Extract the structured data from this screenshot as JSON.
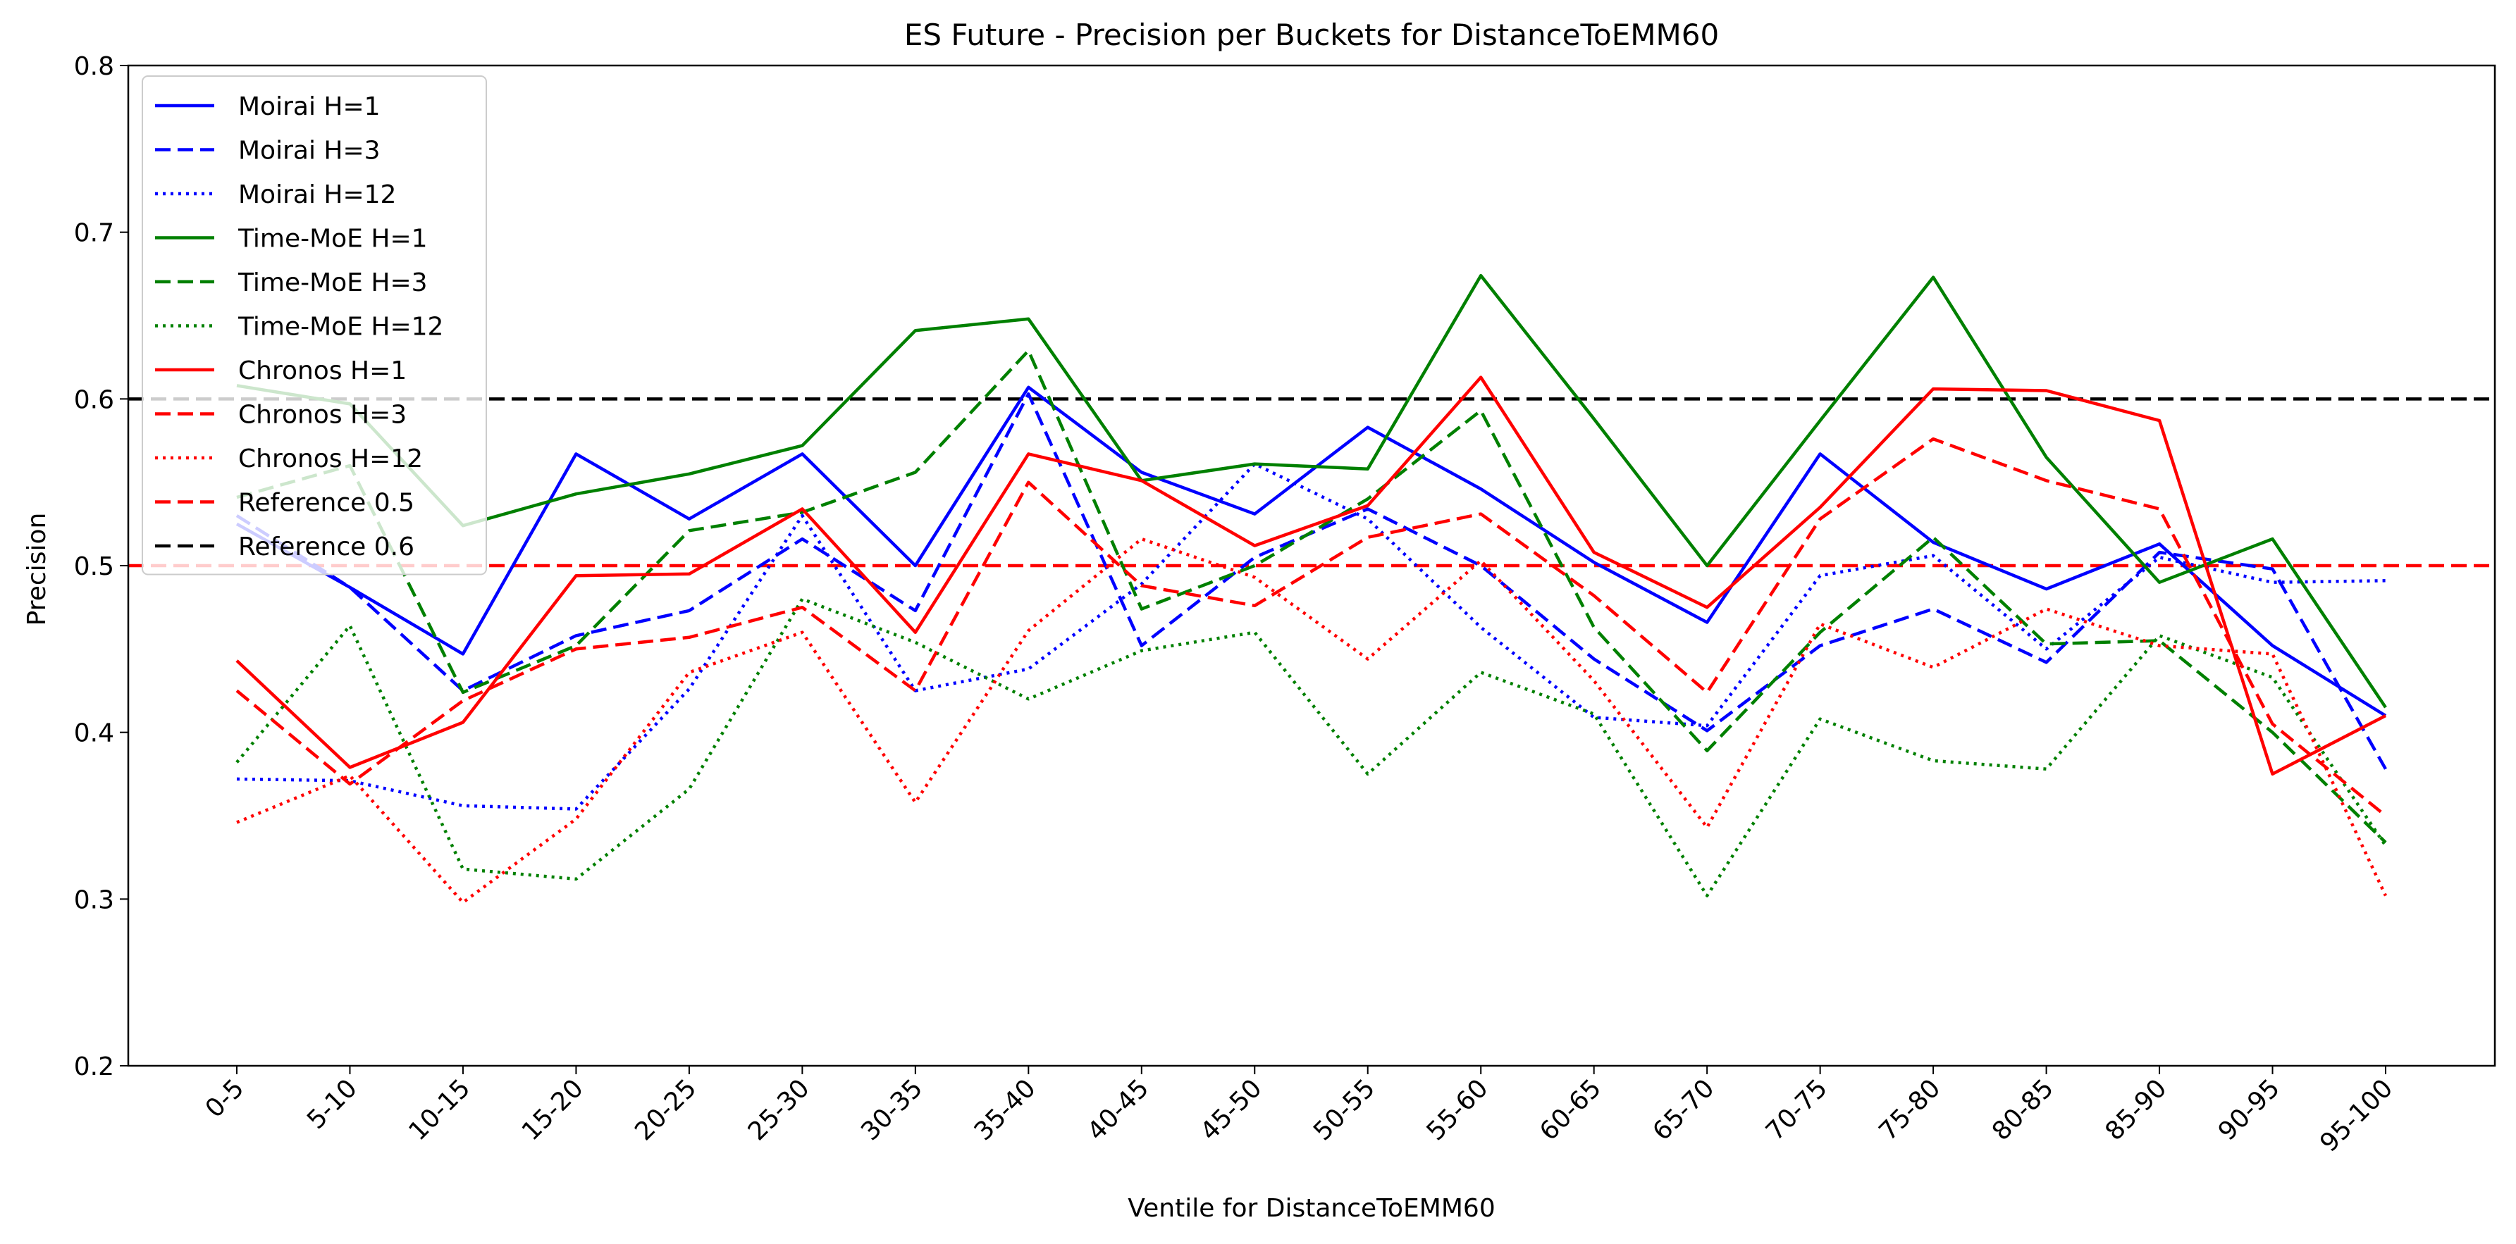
{
  "chart_data": {
    "type": "line",
    "title": "ES Future - Precision per Buckets for DistanceToEMM60",
    "xlabel": "Ventile for DistanceToEMM60",
    "ylabel": "Precision",
    "ylim": [
      0.2,
      0.8
    ],
    "yticks": [
      "0.2",
      "0.3",
      "0.4",
      "0.5",
      "0.6",
      "0.7",
      "0.8"
    ],
    "grid": false,
    "legend_position": "upper-left",
    "categories": [
      "0-5",
      "5-10",
      "10-15",
      "15-20",
      "20-25",
      "25-30",
      "30-35",
      "35-40",
      "40-45",
      "45-50",
      "50-55",
      "55-60",
      "60-65",
      "65-70",
      "70-75",
      "75-80",
      "80-85",
      "85-90",
      "90-95",
      "95-100"
    ],
    "series": [
      {
        "name": "Moirai H=1",
        "color": "#0000ff",
        "style": "solid",
        "values": [
          0.525,
          0.487,
          0.447,
          0.567,
          0.528,
          0.567,
          0.5,
          0.607,
          0.556,
          0.531,
          0.583,
          0.546,
          0.502,
          0.466,
          0.567,
          0.514,
          0.486,
          0.513,
          0.452,
          0.41
        ]
      },
      {
        "name": "Moirai H=3",
        "color": "#0000ff",
        "style": "dashed",
        "values": [
          0.53,
          0.487,
          0.425,
          0.458,
          0.473,
          0.516,
          0.473,
          0.603,
          0.452,
          0.505,
          0.534,
          0.5,
          0.444,
          0.401,
          0.452,
          0.474,
          0.442,
          0.508,
          0.498,
          0.378
        ]
      },
      {
        "name": "Moirai H=12",
        "color": "#0000ff",
        "style": "dotted",
        "values": [
          0.372,
          0.371,
          0.356,
          0.354,
          0.426,
          0.53,
          0.425,
          0.438,
          0.489,
          0.561,
          0.528,
          0.463,
          0.409,
          0.404,
          0.494,
          0.506,
          0.45,
          0.505,
          0.49,
          0.491
        ]
      },
      {
        "name": "Time-MoE H=1",
        "color": "#008000",
        "style": "solid",
        "values": [
          0.608,
          0.597,
          0.524,
          0.543,
          0.555,
          0.572,
          0.641,
          0.648,
          0.551,
          0.561,
          0.558,
          0.674,
          0.588,
          0.5,
          0.587,
          0.673,
          0.565,
          0.49,
          0.516,
          0.415
        ]
      },
      {
        "name": "Time-MoE H=3",
        "color": "#008000",
        "style": "dashed",
        "values": [
          0.541,
          0.56,
          0.424,
          0.452,
          0.521,
          0.532,
          0.556,
          0.629,
          0.474,
          0.5,
          0.54,
          0.593,
          0.463,
          0.389,
          0.46,
          0.517,
          0.453,
          0.455,
          0.4,
          0.334
        ]
      },
      {
        "name": "Time-MoE H=12",
        "color": "#008000",
        "style": "dotted",
        "values": [
          0.382,
          0.464,
          0.318,
          0.312,
          0.366,
          0.48,
          0.454,
          0.42,
          0.449,
          0.46,
          0.375,
          0.436,
          0.411,
          0.302,
          0.408,
          0.383,
          0.378,
          0.458,
          0.433,
          0.332
        ]
      },
      {
        "name": "Chronos H=1",
        "color": "#ff0000",
        "style": "solid",
        "values": [
          0.443,
          0.379,
          0.406,
          0.494,
          0.495,
          0.534,
          0.46,
          0.567,
          0.551,
          0.512,
          0.536,
          0.613,
          0.508,
          0.475,
          0.535,
          0.606,
          0.605,
          0.587,
          0.375,
          0.41
        ]
      },
      {
        "name": "Chronos H=3",
        "color": "#ff0000",
        "style": "dashed",
        "values": [
          0.425,
          0.369,
          0.419,
          0.45,
          0.457,
          0.475,
          0.425,
          0.55,
          0.488,
          0.476,
          0.517,
          0.531,
          0.482,
          0.424,
          0.528,
          0.576,
          0.551,
          0.534,
          0.405,
          0.35
        ]
      },
      {
        "name": "Chronos H=12",
        "color": "#ff0000",
        "style": "dotted",
        "values": [
          0.346,
          0.374,
          0.298,
          0.348,
          0.436,
          0.46,
          0.358,
          0.461,
          0.516,
          0.493,
          0.444,
          0.503,
          0.431,
          0.343,
          0.465,
          0.439,
          0.474,
          0.452,
          0.447,
          0.302
        ]
      }
    ],
    "reference_lines": [
      {
        "name": "Reference 0.5",
        "value": 0.5,
        "color": "#ff0000",
        "style": "dashed"
      },
      {
        "name": "Reference 0.6",
        "value": 0.6,
        "color": "#000000",
        "style": "dashed"
      }
    ]
  }
}
